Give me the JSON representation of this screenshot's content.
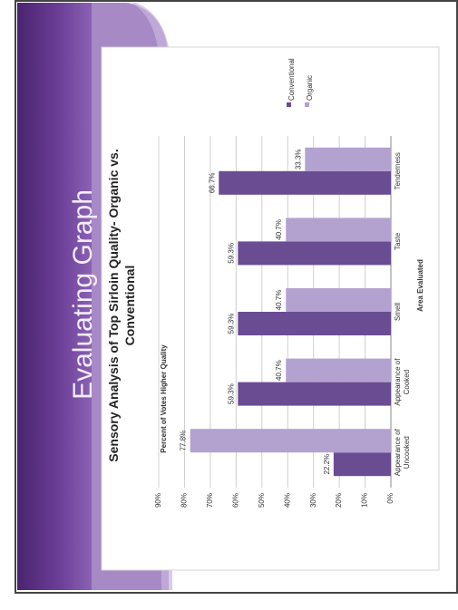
{
  "slide": {
    "title": "Evaluating Graph",
    "colors": {
      "sidebar_dark": "#5b2f86",
      "sidebar_light": "#a98bc9",
      "frame": "#444444"
    }
  },
  "chart_data": {
    "type": "bar",
    "title": "Sensory Analysis of Top Sirloin Quality- Organic vs. Conventional",
    "xlabel": "Area Evaluated",
    "ylabel": "Percent of Votes Higher Quality",
    "categories": [
      "Appearance of Uncooked",
      "Appearance of Cooked",
      "Smell",
      "Taste",
      "Tenderness"
    ],
    "series": [
      {
        "name": "Conventional",
        "values": [
          22.2,
          59.3,
          59.3,
          59.3,
          66.7
        ],
        "labels": [
          "22.2%",
          "59.3%",
          "59.3%",
          "59.3%",
          "66.7%"
        ],
        "color": "#6a4c93"
      },
      {
        "name": "Organic",
        "values": [
          77.8,
          40.7,
          40.7,
          40.7,
          33.3
        ],
        "labels": [
          "77.8%",
          "40.7%",
          "40.7%",
          "40.7%",
          "33.3%"
        ],
        "color": "#b3a2cf"
      }
    ],
    "ylim": [
      0,
      90
    ],
    "yticks": [
      "0%",
      "10%",
      "20%",
      "30%",
      "40%",
      "50%",
      "60%",
      "70%",
      "80%",
      "90%"
    ],
    "grid": true,
    "legend_position": "right",
    "orientation": "rotated 90 degrees counter-clockwise"
  }
}
